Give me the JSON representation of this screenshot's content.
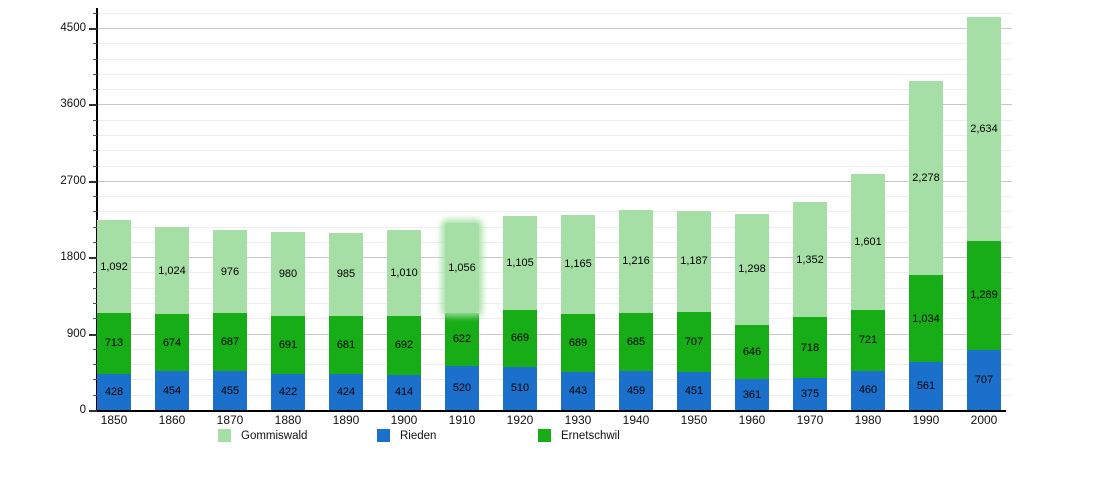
{
  "chart_data": {
    "type": "bar",
    "stacked": true,
    "title": "",
    "xlabel": "",
    "ylabel": "",
    "categories": [
      "1850",
      "1860",
      "1870",
      "1880",
      "1890",
      "1900",
      "1910",
      "1920",
      "1930",
      "1940",
      "1950",
      "1960",
      "1970",
      "1980",
      "1990",
      "2000"
    ],
    "series": [
      {
        "name": "Rieden",
        "color": "#1a70ca",
        "values": [
          428,
          454,
          455,
          422,
          424,
          414,
          520,
          510,
          443,
          459,
          451,
          361,
          375,
          460,
          561,
          707
        ]
      },
      {
        "name": "Ernetschwil",
        "color": "#17ad17",
        "values": [
          713,
          674,
          687,
          691,
          681,
          692,
          622,
          669,
          689,
          685,
          707,
          646,
          718,
          721,
          1034,
          1289
        ]
      },
      {
        "name": "Gommiswald",
        "color": "#a6dfa6",
        "values": [
          1092,
          1024,
          976,
          980,
          985,
          1010,
          1056,
          1105,
          1165,
          1216,
          1187,
          1298,
          1352,
          1601,
          2278,
          2634
        ]
      }
    ],
    "legend": [
      "Gommiswald",
      "Rieden",
      "Ernetschwil"
    ],
    "legend_position": "bottom",
    "grid": true,
    "y_axis": {
      "tick_labels": [
        "0",
        "900",
        "1800",
        "2700",
        "3600",
        "4500"
      ],
      "ticks": [
        0,
        900,
        1800,
        2700,
        3600,
        4500
      ],
      "minor_step": 180,
      "ylim": [
        0,
        4729
      ]
    },
    "highlighted_category": "1910",
    "value_label_color": "#000000"
  }
}
